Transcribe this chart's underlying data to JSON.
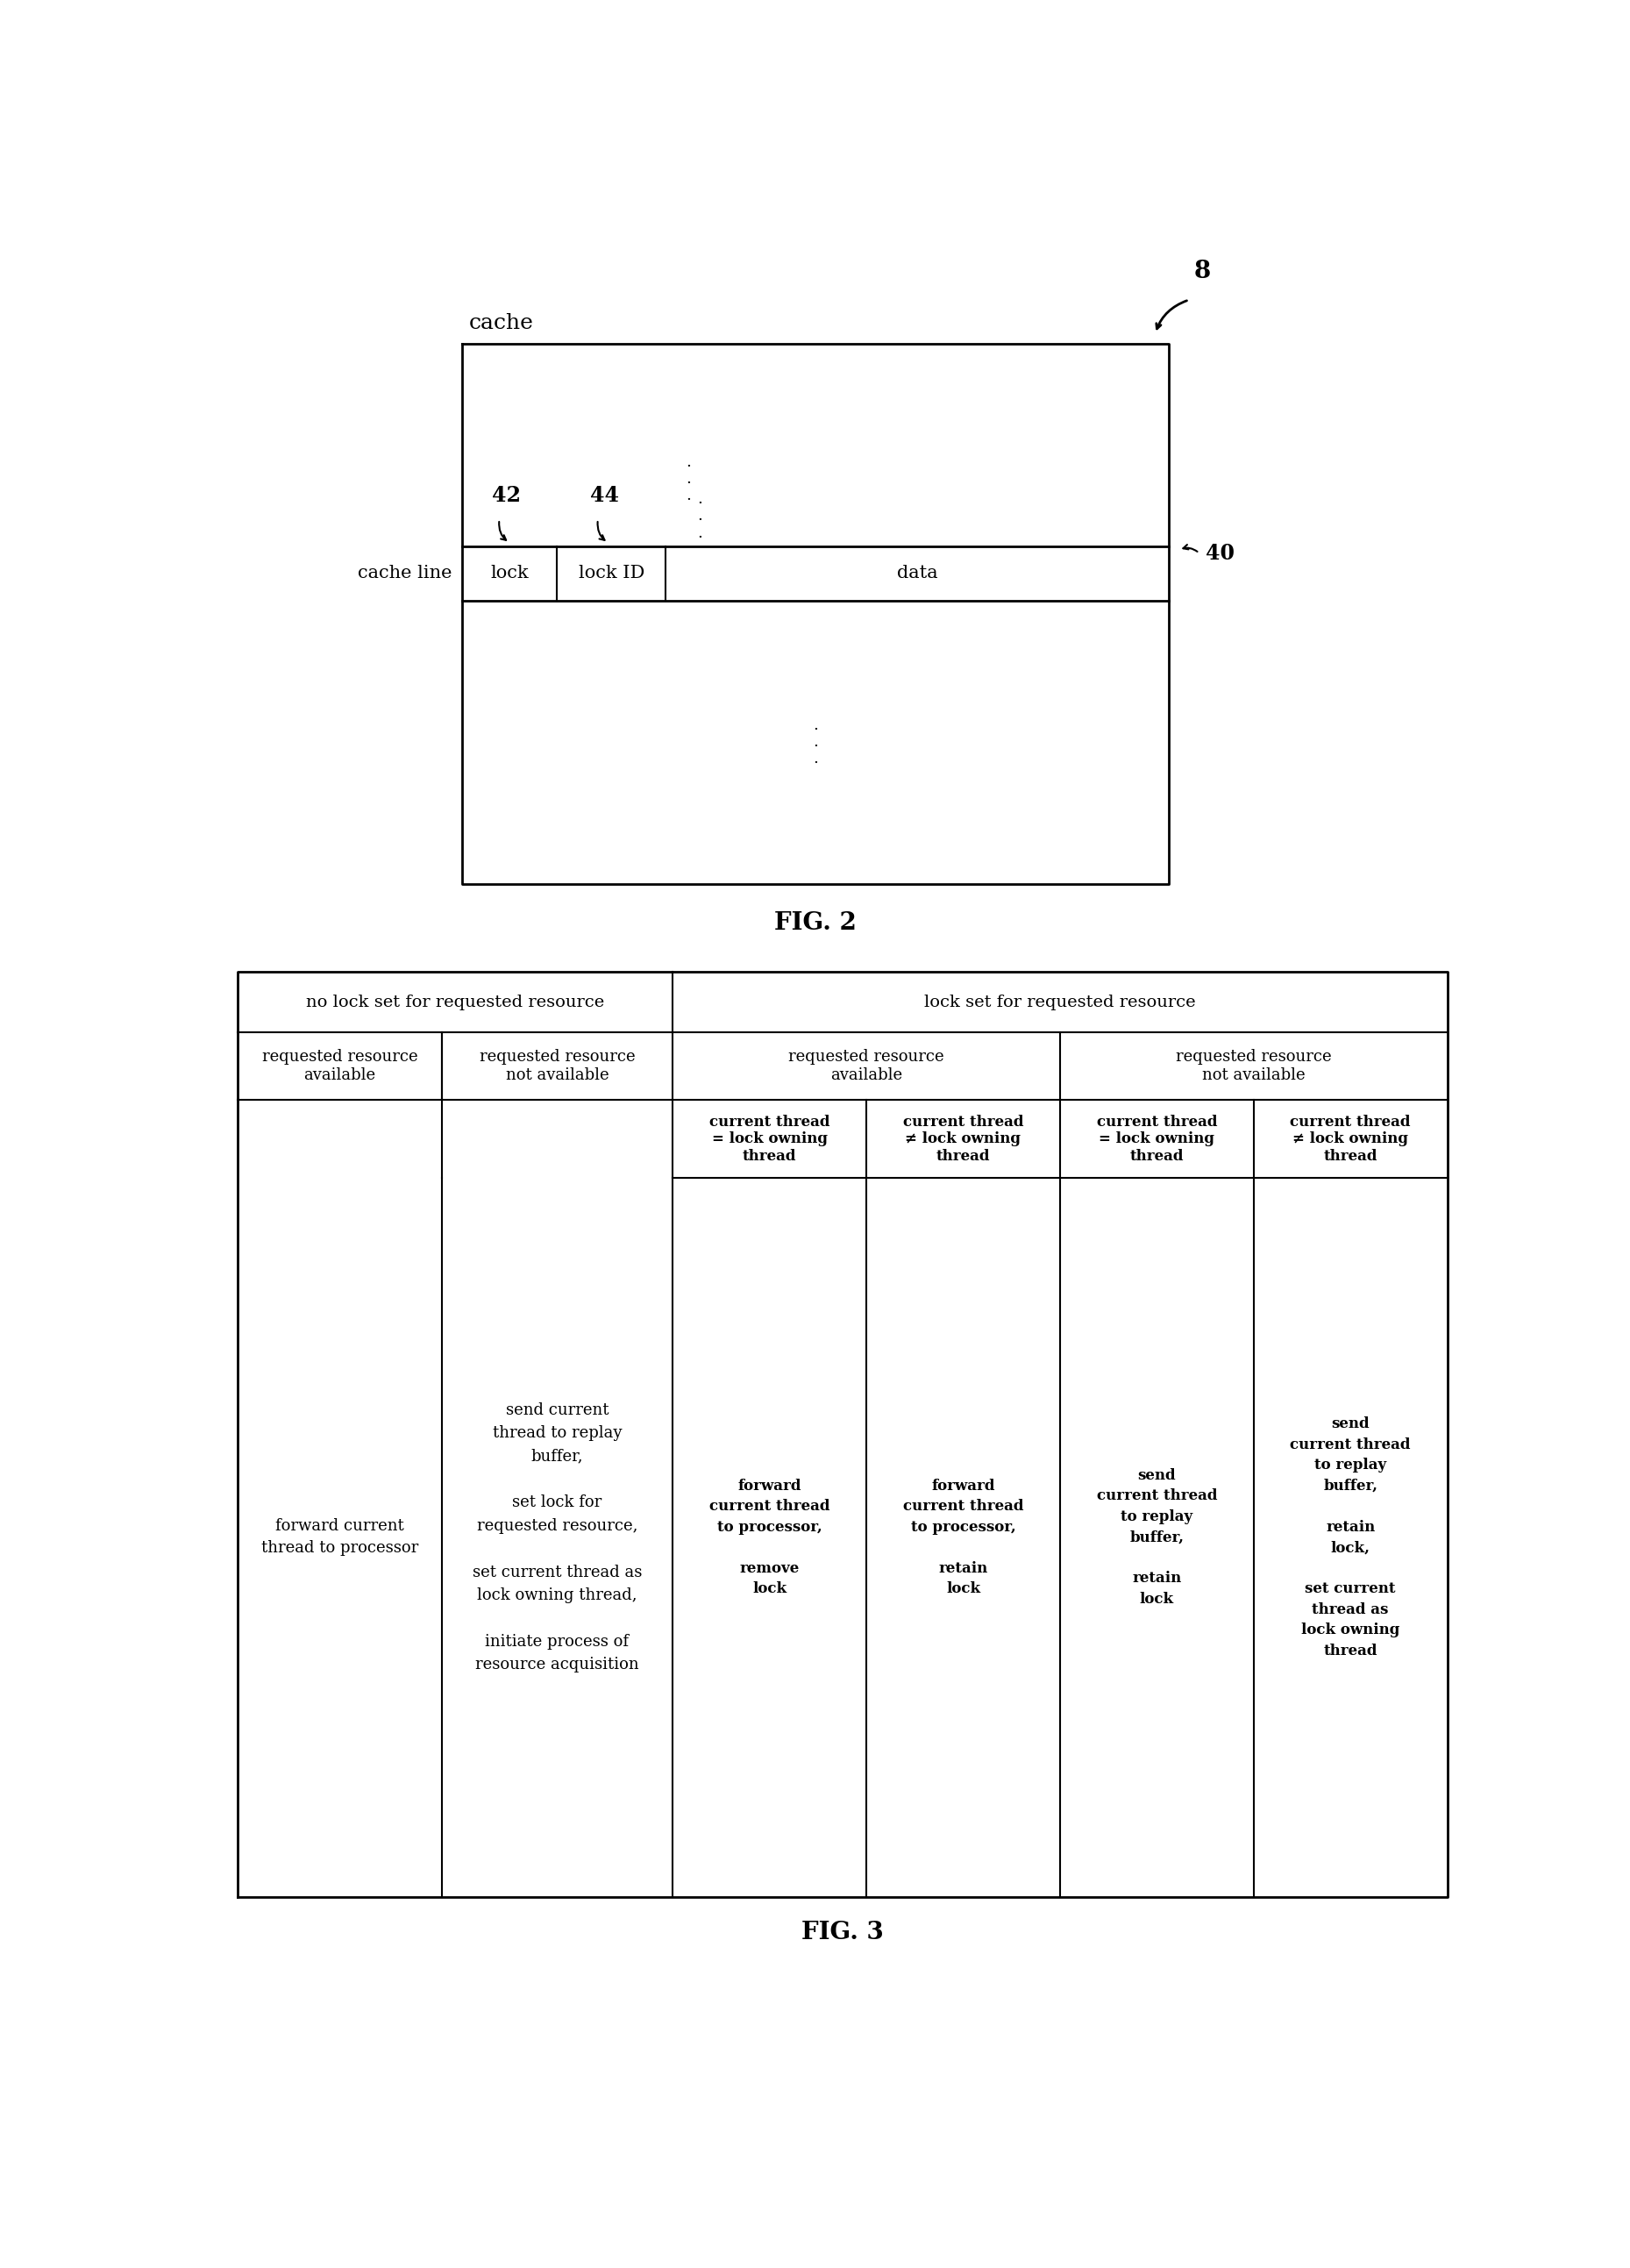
{
  "fig_width": 18.59,
  "fig_height": 25.86,
  "bg_color": "#ffffff",
  "fig2": {
    "title": "FIG. 2",
    "label_8": "8",
    "label_cache": "cache",
    "label_cache_line": "cache line",
    "label_40": "40",
    "label_42": "42",
    "label_44": "44",
    "label_lock": "lock",
    "label_lock_id": "lock ID",
    "label_data": "data"
  },
  "fig3": {
    "title": "FIG. 3",
    "header_row1_col1": "no lock set for requested resource",
    "header_row1_col2": "lock set for requested resource",
    "header_row2_col1": "requested resource\navailable",
    "header_row2_col2": "requested resource\nnot available",
    "header_row2_col3": "requested resource\navailable",
    "header_row2_col4": "requested resource\nnot available",
    "sub_header_col3a": "current thread\n= lock owning\nthread",
    "sub_header_col3b": "current thread\n≠ lock owning\nthread",
    "sub_header_col4a": "current thread\n= lock owning\nthread",
    "sub_header_col4b": "current thread\n≠ lock owning\nthread",
    "cell_1_1": "forward current\nthread to processor",
    "cell_1_2": "send current\nthread to replay\nbuffer,\n\nset lock for\nrequested resource,\n\nset current thread as\nlock owning thread,\n\ninitiate process of\nresource acquisition",
    "cell_1_3a": "forward\ncurrent thread\nto processor,\n\nremove\nlock",
    "cell_1_3b": "forward\ncurrent thread\nto processor,\n\nretain\nlock",
    "cell_1_4a": "send\ncurrent thread\nto replay\nbuffer,\n\nretain\nlock",
    "cell_1_4b": "send\ncurrent thread\nto replay\nbuffer,\n\nretain\nlock,\n\nset current\nthread as\nlock owning\nthread"
  }
}
